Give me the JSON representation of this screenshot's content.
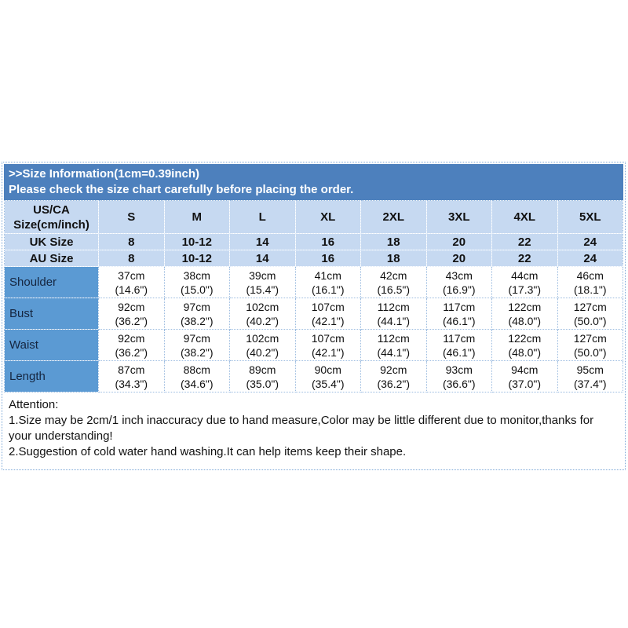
{
  "banner": {
    "line1": ">>Size Information(1cm=0.39inch)",
    "line2": "Please check the size chart carefully before placing the order."
  },
  "table": {
    "corner_header": "US/CA\nSize(cm/inch)",
    "sizes": [
      "S",
      "M",
      "L",
      "XL",
      "2XL",
      "3XL",
      "4XL",
      "5XL"
    ],
    "uk": {
      "label": "UK Size",
      "values": [
        "8",
        "10-12",
        "14",
        "16",
        "18",
        "20",
        "22",
        "24"
      ]
    },
    "au": {
      "label": "AU Size",
      "values": [
        "8",
        "10-12",
        "14",
        "16",
        "18",
        "20",
        "22",
        "24"
      ]
    },
    "rows": [
      {
        "label": "Shoulder",
        "values": [
          "37cm\n(14.6\")",
          "38cm\n(15.0\")",
          "39cm\n(15.4\")",
          "41cm\n(16.1\")",
          "42cm\n(16.5\")",
          "43cm\n(16.9\")",
          "44cm\n(17.3\")",
          "46cm\n(18.1\")"
        ]
      },
      {
        "label": "Bust",
        "values": [
          "92cm\n(36.2\")",
          "97cm\n(38.2\")",
          "102cm\n(40.2\")",
          "107cm\n(42.1\")",
          "112cm\n(44.1\")",
          "117cm\n(46.1\")",
          "122cm\n(48.0\")",
          "127cm\n(50.0\")"
        ]
      },
      {
        "label": "Waist",
        "values": [
          "92cm\n(36.2\")",
          "97cm\n(38.2\")",
          "102cm\n(40.2\")",
          "107cm\n(42.1\")",
          "112cm\n(44.1\")",
          "117cm\n(46.1\")",
          "122cm\n(48.0\")",
          "127cm\n(50.0\")"
        ]
      },
      {
        "label": "Length",
        "values": [
          "87cm\n(34.3\")",
          "88cm\n(34.6\")",
          "89cm\n(35.0\")",
          "90cm\n(35.4\")",
          "92cm\n(36.2\")",
          "93cm\n(36.6\")",
          "94cm\n(37.0\")",
          "95cm\n(37.4\")"
        ]
      }
    ]
  },
  "attention": {
    "title": "Attention:",
    "note1": "1.Size may be 2cm/1 inch inaccuracy due to hand measure,Color may be little different due to monitor,thanks for your understanding!",
    "note2": "2.Suggestion of cold water hand washing.It can help items keep their shape."
  },
  "colors": {
    "banner_blue": "#4d80bd",
    "header_light_blue": "#c6d9f1",
    "row_label_blue": "#5b9ad3",
    "dotted_border_blue": "#9cbce0",
    "banner_text": "#ffffff",
    "body_text": "#111111"
  }
}
